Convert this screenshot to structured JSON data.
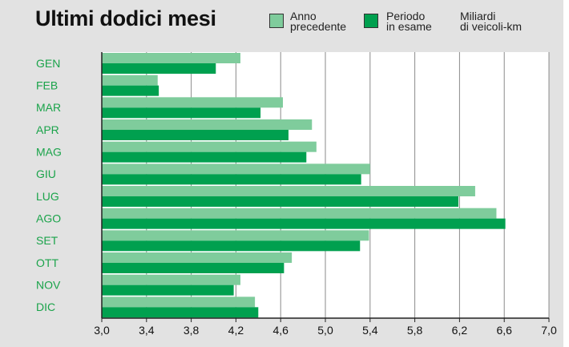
{
  "chart_data": {
    "type": "bar",
    "orientation": "horizontal",
    "title": "Ultimi dodici mesi",
    "unit_label": "Miliardi di veicoli-km",
    "categories": [
      "GEN",
      "FEB",
      "MAR",
      "APR",
      "MAG",
      "GIU",
      "LUG",
      "AGO",
      "SET",
      "OTT",
      "NOV",
      "DIC"
    ],
    "series": [
      {
        "name": "Anno precedente",
        "color": "#7fcc9c",
        "values": [
          4.24,
          3.5,
          4.62,
          4.88,
          4.92,
          5.4,
          6.34,
          6.53,
          5.39,
          4.7,
          4.24,
          4.37
        ]
      },
      {
        "name": "Periodo in esame",
        "color": "#00a04f",
        "values": [
          4.02,
          3.51,
          4.42,
          4.67,
          4.83,
          5.32,
          6.19,
          6.61,
          5.31,
          4.63,
          4.18,
          4.4
        ]
      }
    ],
    "xlim": [
      3.0,
      7.0
    ],
    "x_ticks": [
      "3,0",
      "3,4",
      "3,8",
      "4,2",
      "4,6",
      "5,0",
      "5,4",
      "5,8",
      "6,2",
      "6,6",
      "7,0"
    ],
    "grid": true,
    "legend_position": "top-right"
  },
  "legend": {
    "prev_label": "Anno\nprecedente",
    "current_label": "Periodo\nin esame",
    "unit_label": "Miliardi\ndi veicoli-km"
  },
  "colors": {
    "background": "#e2e2e2",
    "plot_background": "#ffffff",
    "month_label": "#1aa34a"
  }
}
